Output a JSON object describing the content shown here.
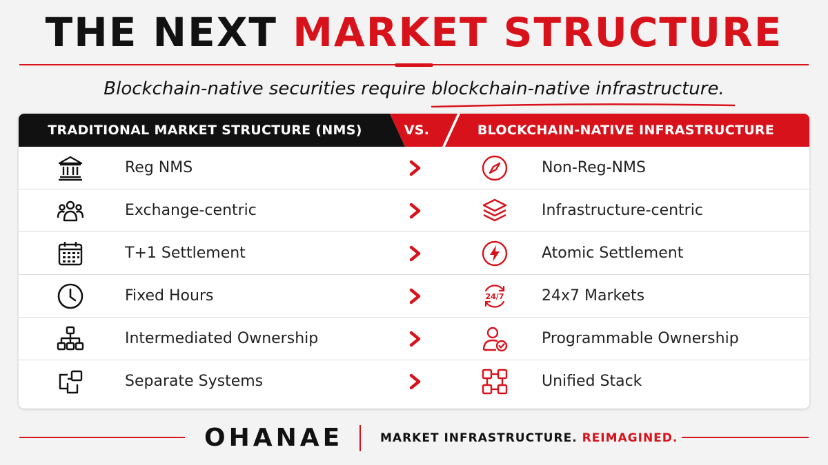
{
  "title": {
    "part1": "THE NEXT",
    "part2": "MARKET STRUCTURE"
  },
  "subtitle": {
    "part1": "Blockchain-native securities require ",
    "part2": "blockchain-native infrastructure."
  },
  "table": {
    "left_header": "TRADITIONAL MARKET STRUCTURE (NMS)",
    "vs_label": "VS.",
    "right_header": "BLOCKCHAIN-NATIVE INFRASTRUCTURE",
    "rows": [
      {
        "left_icon": "bank-building-icon",
        "left": "Reg NMS",
        "right_icon": "compass-icon",
        "right": "Non-Reg-NMS"
      },
      {
        "left_icon": "people-group-icon",
        "left": "Exchange-centric",
        "right_icon": "layers-stack-icon",
        "right": "Infrastructure-centric"
      },
      {
        "left_icon": "calendar-icon",
        "left": "T+1 Settlement",
        "right_icon": "lightning-bolt-icon",
        "right": "Atomic Settlement"
      },
      {
        "left_icon": "clock-icon",
        "left": "Fixed Hours",
        "right_icon": "24-7-cycle-icon",
        "right": "24x7 Markets"
      },
      {
        "left_icon": "org-chart-icon",
        "left": "Intermediated Ownership",
        "right_icon": "user-check-icon",
        "right": "Programmable Ownership"
      },
      {
        "left_icon": "separate-boxes-icon",
        "left": "Separate Systems",
        "right_icon": "unified-blocks-icon",
        "right": "Unified Stack"
      }
    ],
    "right_icon_badge": "24/7"
  },
  "footer": {
    "brand": "OHANAE",
    "tagline_part1": "MARKET INFRASTRUCTURE. ",
    "tagline_part2": "REIMAGINED."
  },
  "colors": {
    "accent": "#d8121b",
    "dark": "#111111",
    "background": "#f3f3f3"
  }
}
